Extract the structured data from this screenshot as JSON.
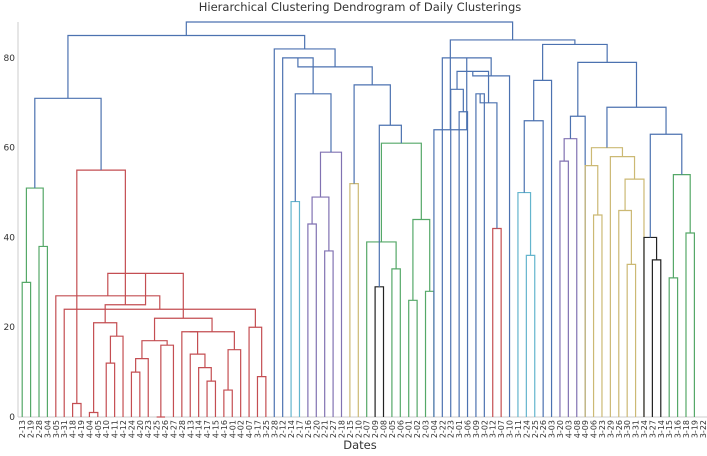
{
  "chart_data": {
    "type": "dendrogram",
    "title": "Hierarchical Clustering Dendrogram of Daily Clusterings",
    "xlabel": "Dates",
    "ylabel": "",
    "ylim": [
      0,
      88
    ],
    "yticks": [
      0,
      20,
      40,
      60,
      80
    ],
    "grid": false,
    "leaves": [
      "2-13",
      "2-19",
      "2-28",
      "3-04",
      "3-05",
      "3-31",
      "4-18",
      "4-19",
      "4-04",
      "4-05",
      "4-10",
      "4-11",
      "4-12",
      "4-24",
      "4-20",
      "4-23",
      "4-25",
      "4-26",
      "4-27",
      "4-28",
      "4-13",
      "4-14",
      "4-17",
      "4-15",
      "4-16",
      "4-01",
      "4-02",
      "4-07",
      "3-17",
      "3-25",
      "3-28",
      "2-12",
      "2-14",
      "2-17",
      "2-16",
      "2-20",
      "2-21",
      "2-27",
      "2-18",
      "2-15",
      "2-10",
      "2-07",
      "2-09",
      "2-08",
      "2-05",
      "2-06",
      "2-01",
      "2-02",
      "2-03",
      "2-04",
      "2-22",
      "2-23",
      "3-01",
      "3-06",
      "3-09",
      "3-02",
      "3-12",
      "3-07",
      "3-10",
      "3-11",
      "2-24",
      "2-25",
      "2-26",
      "3-03",
      "3-20",
      "4-03",
      "4-08",
      "4-09",
      "4-06",
      "3-23",
      "3-29",
      "3-26",
      "3-30",
      "3-31",
      "3-24",
      "3-27",
      "3-14",
      "3-15",
      "3-16",
      "3-18",
      "3-19",
      "3-22"
    ],
    "colors": {
      "above_threshold": "#4c72b0",
      "green": "#55a868",
      "red": "#c44e52",
      "purple": "#8172b2",
      "yellow": "#ccb974",
      "cyan": "#64b5cd",
      "black": "#222222"
    },
    "merges": [
      {
        "a": 2,
        "b": 3,
        "h": 38,
        "color": "green"
      },
      {
        "a": 0,
        "b": 1,
        "h": 30,
        "color": "green"
      },
      {
        "a": "n1",
        "b": "n0",
        "h": 51,
        "color": "green"
      },
      {
        "a": 7,
        "b": 6,
        "h": 3,
        "color": "red"
      },
      {
        "a": 8,
        "b": 9,
        "h": 1,
        "color": "red"
      },
      {
        "a": 11,
        "b": 10,
        "h": 12,
        "color": "red"
      },
      {
        "a": "n5",
        "b": 12,
        "h": 18,
        "color": "red"
      },
      {
        "a": "n4",
        "b": "n6",
        "h": 21,
        "color": "red"
      },
      {
        "a": 14,
        "b": 13,
        "h": 10,
        "color": "red"
      },
      {
        "a": "n8",
        "b": 15,
        "h": 13,
        "color": "red"
      },
      {
        "a": 16,
        "b": 17,
        "h": 0,
        "color": "red"
      },
      {
        "a": "n10",
        "b": 18,
        "h": 16,
        "color": "red"
      },
      {
        "a": "n9",
        "b": "n11",
        "h": 17,
        "color": "red"
      },
      {
        "a": 22,
        "b": 23,
        "h": 8,
        "color": "red"
      },
      {
        "a": 21,
        "b": "n13",
        "h": 11,
        "color": "red"
      },
      {
        "a": 20,
        "b": "n14",
        "h": 14,
        "color": "red"
      },
      {
        "a": 19,
        "b": "n15",
        "h": 19,
        "color": "red"
      },
      {
        "a": 24,
        "b": 25,
        "h": 6,
        "color": "red"
      },
      {
        "a": 26,
        "b": "n17",
        "h": 15,
        "color": "red"
      },
      {
        "a": "n16",
        "b": "n18",
        "h": 19,
        "color": "red"
      },
      {
        "a": "n12",
        "b": "n19",
        "h": 22,
        "color": "red"
      },
      {
        "a": 28,
        "b": 29,
        "h": 9,
        "color": "red"
      },
      {
        "a": 27,
        "b": "n21",
        "h": 20,
        "color": "red"
      },
      {
        "a": 5,
        "b": "n22",
        "h": 24,
        "color": "red"
      },
      {
        "a": 4,
        "b": "n23",
        "h": 27,
        "color": "red"
      },
      {
        "a": "n20",
        "b": "n24",
        "h": 32,
        "color": "red"
      },
      {
        "a": "n7",
        "b": "n25",
        "h": 25,
        "color": "red"
      },
      {
        "a": "n3",
        "b": "n26",
        "h": 55,
        "color": "red"
      },
      {
        "a": "n2",
        "b": "n27",
        "h": 71,
        "color": "above_threshold"
      },
      {
        "a": 32,
        "b": 33,
        "h": 48,
        "color": "cyan"
      },
      {
        "a": 36,
        "b": 37,
        "h": 37,
        "color": "purple"
      },
      {
        "a": 34,
        "b": 35,
        "h": 43,
        "color": "purple"
      },
      {
        "a": "n30",
        "b": "n31",
        "h": 49,
        "color": "purple"
      },
      {
        "a": 38,
        "b": "n32",
        "h": 59,
        "color": "purple"
      },
      {
        "a": 42,
        "b": 43,
        "h": 29,
        "color": "black"
      },
      {
        "a": 39,
        "b": 40,
        "h": 52,
        "color": "yellow"
      },
      {
        "a": 44,
        "b": 45,
        "h": 33,
        "color": "green"
      },
      {
        "a": 41,
        "b": "n36",
        "h": 39,
        "color": "green"
      },
      {
        "a": 46,
        "b": 47,
        "h": 26,
        "color": "green"
      },
      {
        "a": 48,
        "b": 49,
        "h": 28,
        "color": "green"
      },
      {
        "a": "n38",
        "b": "n39",
        "h": 44,
        "color": "green"
      },
      {
        "a": "n37",
        "b": "n40",
        "h": 61,
        "color": "green"
      },
      {
        "a": "n34",
        "b": "n41",
        "h": 65,
        "color": "above_threshold"
      },
      {
        "a": "n33",
        "b": "n29",
        "h": 72,
        "color": "above_threshold"
      },
      {
        "a": "n35",
        "b": "n42",
        "h": 74,
        "color": "above_threshold"
      },
      {
        "a": 31,
        "b": "n43",
        "h": 80,
        "color": "above_threshold"
      },
      {
        "a": "n45",
        "b": "n44",
        "h": 78,
        "color": "above_threshold"
      },
      {
        "a": 30,
        "b": "n46",
        "h": 82,
        "color": "above_threshold"
      },
      {
        "a": "n28",
        "b": "n47",
        "h": 85,
        "color": "above_threshold"
      },
      {
        "a": 52,
        "b": 53,
        "h": 68,
        "color": "above_threshold"
      },
      {
        "a": 51,
        "b": "n49",
        "h": 73,
        "color": "above_threshold"
      },
      {
        "a": 54,
        "b": 55,
        "h": 72,
        "color": "above_threshold"
      },
      {
        "a": 56,
        "b": 57,
        "h": 42,
        "color": "red"
      },
      {
        "a": "n51",
        "b": "n52",
        "h": 70,
        "color": "above_threshold"
      },
      {
        "a": "n50",
        "b": "n53",
        "h": 77,
        "color": "above_threshold"
      },
      {
        "a": "n54",
        "b": 58,
        "h": 76,
        "color": "above_threshold"
      },
      {
        "a": 50,
        "b": "n55",
        "h": 80,
        "color": "above_threshold"
      },
      {
        "a": 49,
        "b": "n56",
        "h": 64,
        "color": "above_threshold"
      },
      {
        "a": 60,
        "b": 61,
        "h": 36,
        "color": "cyan"
      },
      {
        "a": 59,
        "b": "n58",
        "h": 50,
        "color": "cyan"
      },
      {
        "a": 62,
        "b": "n59",
        "h": 66,
        "color": "above_threshold"
      },
      {
        "a": 63,
        "b": "n60",
        "h": 75,
        "color": "above_threshold"
      },
      {
        "a": 64,
        "b": 65,
        "h": 57,
        "color": "purple"
      },
      {
        "a": 66,
        "b": "n62",
        "h": 62,
        "color": "purple"
      },
      {
        "a": 67,
        "b": "n63",
        "h": 67,
        "color": "above_threshold"
      },
      {
        "a": 72,
        "b": 73,
        "h": 34,
        "color": "yellow"
      },
      {
        "a": 71,
        "b": "n65",
        "h": 46,
        "color": "yellow"
      },
      {
        "a": "n66",
        "b": 74,
        "h": 53,
        "color": "yellow"
      },
      {
        "a": 70,
        "b": "n67",
        "h": 58,
        "color": "yellow"
      },
      {
        "a": 68,
        "b": 69,
        "h": 45,
        "color": "yellow"
      },
      {
        "a": "n69",
        "b": 67,
        "h": 56,
        "color": "yellow"
      },
      {
        "a": "n70",
        "b": "n68",
        "h": 60,
        "color": "yellow"
      },
      {
        "a": 75,
        "b": 76,
        "h": 35,
        "color": "black"
      },
      {
        "a": 74,
        "b": "n72",
        "h": 40,
        "color": "black"
      },
      {
        "a": 77,
        "b": 78,
        "h": 31,
        "color": "green"
      },
      {
        "a": 79,
        "b": 80,
        "h": 41,
        "color": "green"
      },
      {
        "a": "n74",
        "b": "n75",
        "h": 54,
        "color": "green"
      },
      {
        "a": "n73",
        "b": "n76",
        "h": 63,
        "color": "above_threshold"
      },
      {
        "a": "n71",
        "b": "n77",
        "h": 69,
        "color": "above_threshold"
      },
      {
        "a": "n64",
        "b": "n78",
        "h": 79,
        "color": "above_threshold"
      },
      {
        "a": "n61",
        "b": "n79",
        "h": 83,
        "color": "above_threshold"
      },
      {
        "a": "n57",
        "b": "n80",
        "h": 84,
        "color": "above_threshold"
      },
      {
        "a": "n48",
        "b": "n81",
        "h": 88,
        "color": "above_threshold"
      }
    ]
  }
}
